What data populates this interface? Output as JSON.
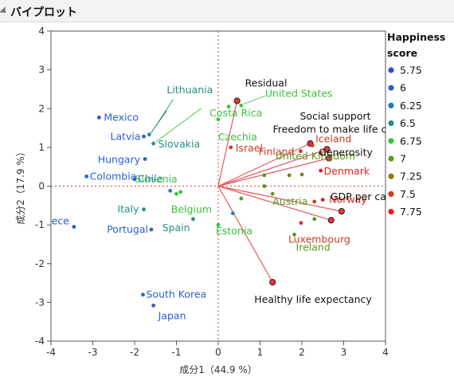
{
  "panel": {
    "title": "バイプロット"
  },
  "legend": {
    "title_line1": "Happiness",
    "title_line2": "score",
    "levels": [
      {
        "label": "5.75",
        "color": "#2e4fe0"
      },
      {
        "label": "6",
        "color": "#2b5fd2"
      },
      {
        "label": "6.25",
        "color": "#2a78b8"
      },
      {
        "label": "6.5",
        "color": "#249182"
      },
      {
        "label": "6.75",
        "color": "#3bc33b"
      },
      {
        "label": "7",
        "color": "#579a1f"
      },
      {
        "label": "7.25",
        "color": "#8a7a16"
      },
      {
        "label": "7.5",
        "color": "#cc3c1e"
      },
      {
        "label": "7.75",
        "color": "#ee1c1c"
      }
    ]
  },
  "chart_data": {
    "type": "scatter",
    "xlabel": "成分1（44.9 %）",
    "ylabel": "成分2（17.9 %）",
    "xlim": [
      -4,
      4
    ],
    "ylim": [
      -4,
      4
    ],
    "xticks": [
      -4,
      -3,
      -2,
      -1,
      0,
      1,
      2,
      3,
      4
    ],
    "yticks": [
      -4,
      -3,
      -2,
      -1,
      0,
      1,
      2,
      3,
      4
    ],
    "points": [
      {
        "label": "Mexico",
        "x": -2.85,
        "y": 1.77,
        "level": 1
      },
      {
        "label": "Latvia",
        "x": -1.78,
        "y": 1.28,
        "level": 1
      },
      {
        "label": "Hungary",
        "x": -1.75,
        "y": 0.7,
        "level": 1
      },
      {
        "label": "Colombia",
        "x": -3.15,
        "y": 0.25,
        "level": 1
      },
      {
        "label": "Chile",
        "x": -2.0,
        "y": 0.18,
        "level": 1
      },
      {
        "label": "Greece",
        "x": -3.45,
        "y": -1.05,
        "level": 1
      },
      {
        "label": "Portugal",
        "x": -1.6,
        "y": -1.12,
        "level": 1
      },
      {
        "label": "South Korea",
        "x": -1.8,
        "y": -2.8,
        "level": 1
      },
      {
        "label": "Japan",
        "x": -1.55,
        "y": -3.08,
        "level": 1
      },
      {
        "label": "Lithuania",
        "x": -1.65,
        "y": 1.33,
        "level": 3
      },
      {
        "label": "Slovakia",
        "x": -1.55,
        "y": 1.1,
        "level": 3
      },
      {
        "label": "Italy",
        "x": -1.78,
        "y": -0.6,
        "level": 3
      },
      {
        "label": "Spain",
        "x": -0.6,
        "y": -0.85,
        "level": 3
      },
      {
        "label": "",
        "x": -1.15,
        "y": -0.12,
        "level": 2
      },
      {
        "label": "Costa Rica",
        "x": 0.25,
        "y": 2.05,
        "level": 4
      },
      {
        "label": "Czechia",
        "x": 0.0,
        "y": 1.72,
        "level": 4
      },
      {
        "label": "Slovenia",
        "x": -1.0,
        "y": -0.2,
        "level": 4
      },
      {
        "label": "Belgium",
        "x": -0.9,
        "y": -0.15,
        "level": 4
      },
      {
        "label": "Estonia",
        "x": 0.0,
        "y": -1.0,
        "level": 4
      },
      {
        "label": "United States",
        "x": 0.55,
        "y": 2.08,
        "level": 4
      },
      {
        "label": "",
        "x": 0.35,
        "y": -0.7,
        "level": 2
      },
      {
        "label": "Israel",
        "x": 0.3,
        "y": 1.0,
        "level": 7
      },
      {
        "label": "United Kingdom",
        "x": 1.1,
        "y": 0.28,
        "level": 5
      },
      {
        "label": "",
        "x": 1.1,
        "y": 0.0,
        "level": 5
      },
      {
        "label": "",
        "x": 0.55,
        "y": -0.32,
        "level": 5
      },
      {
        "label": "Austria",
        "x": 1.3,
        "y": -0.2,
        "level": 5
      },
      {
        "label": "Ireland",
        "x": 1.82,
        "y": -1.25,
        "level": 5
      },
      {
        "label": "",
        "x": 2.3,
        "y": -0.85,
        "level": 5
      },
      {
        "label": "",
        "x": 2.0,
        "y": 0.3,
        "level": 6
      },
      {
        "label": "",
        "x": 1.7,
        "y": 0.28,
        "level": 6
      },
      {
        "label": "Finland",
        "x": 1.97,
        "y": 0.9,
        "level": 7
      },
      {
        "label": "Iceland",
        "x": 2.25,
        "y": 1.05,
        "level": 7
      },
      {
        "label": "Denmark",
        "x": 2.45,
        "y": 0.4,
        "level": 8
      },
      {
        "label": "Norway",
        "x": 2.5,
        "y": -0.35,
        "level": 8
      },
      {
        "label": "",
        "x": 2.3,
        "y": -0.4,
        "level": 7
      },
      {
        "label": "",
        "x": 2.45,
        "y": 0.85,
        "level": 7
      },
      {
        "label": "Luxembourg",
        "x": 1.98,
        "y": -0.95,
        "level": 7
      }
    ],
    "loadings": [
      {
        "label": "Residual",
        "x": 0.45,
        "y": 2.2
      },
      {
        "label": "Social support",
        "x": 2.2,
        "y": 1.1
      },
      {
        "label": "Freedom to make life choices",
        "x": 2.6,
        "y": 0.95
      },
      {
        "label": "Generosity",
        "x": 2.65,
        "y": 0.72
      },
      {
        "label": "GDP per capita",
        "x": 2.95,
        "y": -0.65
      },
      {
        "label": "Healthy life expectancy",
        "x": 1.3,
        "y": -2.48
      },
      {
        "label": "",
        "x": 2.7,
        "y": -0.88
      }
    ]
  }
}
